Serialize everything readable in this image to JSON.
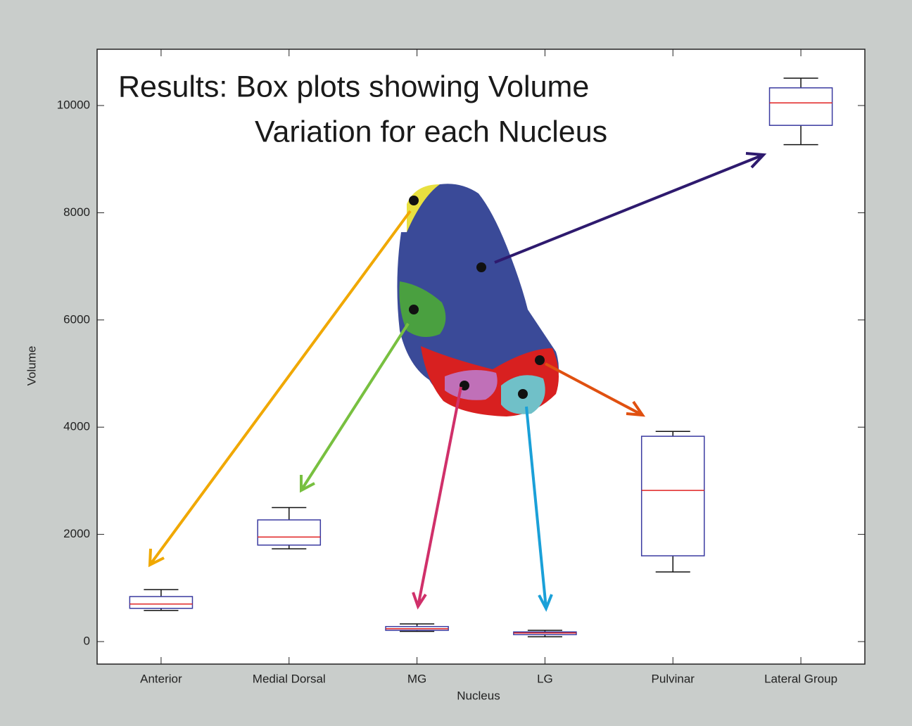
{
  "chart_data": {
    "type": "box",
    "title_lines": [
      "Results: Box plots showing Volume",
      "Variation for each Nucleus"
    ],
    "x_label": "Nucleus",
    "y_label": "Volume",
    "categories": [
      "Anterior",
      "Medial Dorsal",
      "MG",
      "LG",
      "Pulvinar",
      "Lateral Group"
    ],
    "whisker_low": [
      580,
      1730,
      190,
      90,
      1300,
      9270
    ],
    "q1": [
      620,
      1800,
      210,
      130,
      1600,
      9630
    ],
    "median": [
      700,
      1950,
      240,
      160,
      2820,
      10050
    ],
    "q3": [
      840,
      2270,
      280,
      180,
      3830,
      10330
    ],
    "whisker_high": [
      970,
      2500,
      330,
      210,
      3920,
      10510
    ],
    "box_color": "#3a3aa0",
    "median_color": "#e02020",
    "whisker_color": "#111111",
    "ylim": [
      -420,
      11050
    ],
    "yticks": [
      0,
      2000,
      4000,
      6000,
      8000,
      10000
    ]
  }
}
